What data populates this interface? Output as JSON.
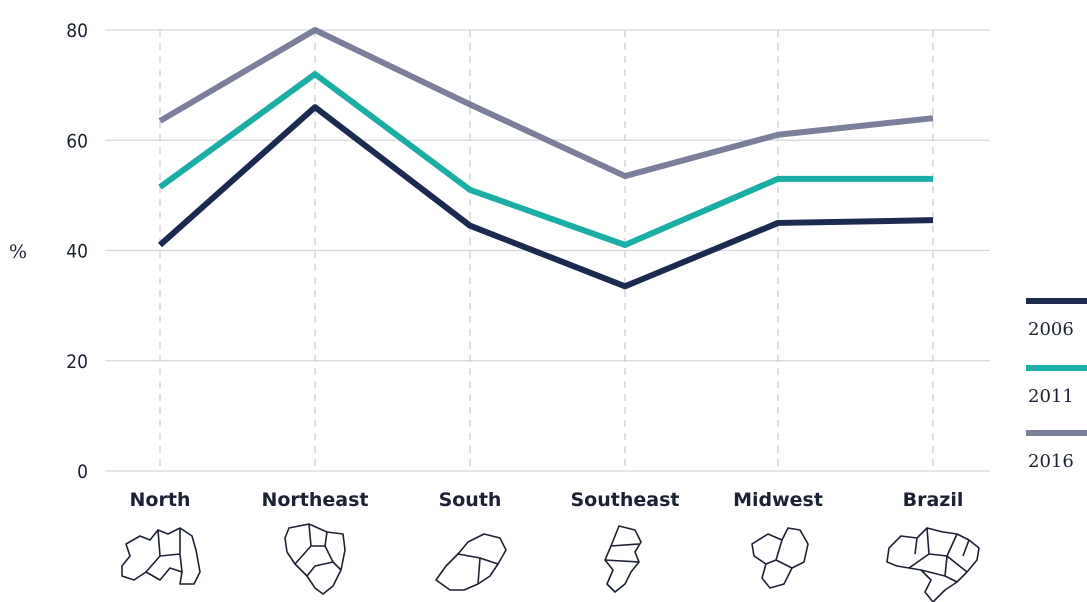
{
  "chart_data": {
    "type": "line",
    "title": "",
    "xlabel": "",
    "ylabel": "%",
    "categories": [
      "North",
      "Northeast",
      "South",
      "Southeast",
      "Midwest",
      "Brazil"
    ],
    "ylim": [
      0,
      80
    ],
    "yticks": [
      0,
      20,
      40,
      60,
      80
    ],
    "grid": true,
    "legend_position": "right",
    "series": [
      {
        "name": "2006",
        "values": [
          41,
          66,
          44.5,
          33.5,
          45,
          45.5
        ],
        "color": "#1b2a4e"
      },
      {
        "name": "2011",
        "values": [
          51.5,
          72,
          51,
          41,
          53,
          53
        ],
        "color": "#1aaea5"
      },
      {
        "name": "2016",
        "values": [
          63.5,
          80,
          66.5,
          53.5,
          61,
          64
        ],
        "color": "#7c7f99"
      }
    ]
  },
  "icons": [
    "north-map-icon",
    "northeast-map-icon",
    "south-map-icon",
    "southeast-map-icon",
    "midwest-map-icon",
    "brazil-map-icon"
  ]
}
